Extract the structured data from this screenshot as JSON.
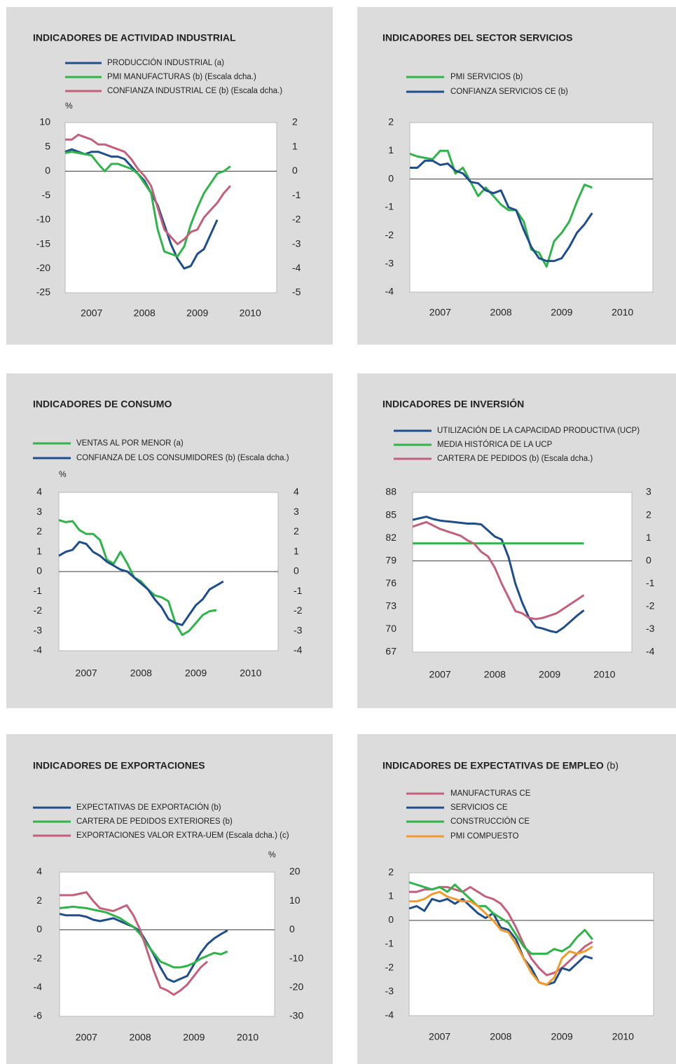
{
  "chart_data": [
    {
      "type": "line",
      "title": "INDICADORES DE ACTIVIDAD INDUSTRIAL",
      "unit": "%",
      "x": [
        2007,
        2007.125,
        2007.25,
        2007.375,
        2007.5,
        2007.625,
        2007.75,
        2007.875,
        2008,
        2008.125,
        2008.25,
        2008.375,
        2008.5,
        2008.625,
        2008.75,
        2008.875,
        2009,
        2009.125,
        2009.25,
        2009.375,
        2009.5,
        2009.625,
        2009.75,
        2009.875,
        2010,
        2010.125
      ],
      "xlim": [
        2007,
        2011
      ],
      "xticks": [
        {
          "value": 2007.5,
          "label": "2007"
        },
        {
          "value": 2008.5,
          "label": "2008"
        },
        {
          "value": 2009.5,
          "label": "2009"
        },
        {
          "value": 2010.5,
          "label": "2010"
        }
      ],
      "ylim": [
        -25,
        10
      ],
      "yticks": [
        -25,
        -20,
        -15,
        -10,
        -5,
        0,
        5,
        10
      ],
      "y2lim": [
        -5,
        2
      ],
      "y2ticks": [
        -5,
        -4,
        -3,
        -2,
        -1,
        0,
        1,
        2
      ],
      "series": [
        {
          "name": "PRODUCCIÓN INDUSTRIAL (a)",
          "color": "#1f4e8c",
          "values": [
            4,
            4.5,
            4,
            3.5,
            4,
            4,
            3.5,
            3,
            3,
            2.5,
            1,
            -0.5,
            -2,
            -4.5,
            -7,
            -11,
            -15,
            -18,
            -20,
            -19.5,
            -17,
            -16,
            -13,
            -10,
            null,
            null
          ]
        },
        {
          "name": "PMI MANUFACTURAS (b) (Escala dcha.)",
          "color": "#2fb44a",
          "axis": "y2",
          "values": [
            0.75,
            0.8,
            0.75,
            0.7,
            0.65,
            0.3,
            0,
            0.3,
            0.3,
            0.2,
            0.1,
            -0.1,
            -0.5,
            -0.9,
            -2.4,
            -3.3,
            -3.4,
            -3.5,
            -3.1,
            -2.2,
            -1.5,
            -0.9,
            -0.5,
            -0.1,
            0,
            0.2
          ]
        },
        {
          "name": "CONFIANZA INDUSTRIAL CE (b) (Escala dcha.)",
          "color": "#c4607c",
          "axis": "y2",
          "values": [
            1.3,
            1.3,
            1.5,
            1.4,
            1.3,
            1.1,
            1.1,
            1,
            0.9,
            0.8,
            0.5,
            0.1,
            -0.2,
            -0.6,
            -1.5,
            -2.4,
            -2.7,
            -3,
            -2.8,
            -2.5,
            -2.4,
            -1.9,
            -1.6,
            -1.3,
            -0.9,
            -0.6
          ]
        }
      ]
    },
    {
      "type": "line",
      "title": "INDICADORES DEL SECTOR SERVICIOS",
      "x": [
        2007,
        2007.125,
        2007.25,
        2007.375,
        2007.5,
        2007.625,
        2007.75,
        2007.875,
        2008,
        2008.125,
        2008.25,
        2008.375,
        2008.5,
        2008.625,
        2008.75,
        2008.875,
        2009,
        2009.125,
        2009.25,
        2009.375,
        2009.5,
        2009.625,
        2009.75,
        2009.875,
        2010,
        2010.125
      ],
      "xlim": [
        2007,
        2011
      ],
      "xticks": [
        {
          "value": 2007.5,
          "label": "2007"
        },
        {
          "value": 2008.5,
          "label": "2008"
        },
        {
          "value": 2009.5,
          "label": "2009"
        },
        {
          "value": 2010.5,
          "label": "2010"
        }
      ],
      "ylim": [
        -4,
        2
      ],
      "yticks": [
        -4,
        -3,
        -2,
        -1,
        0,
        1,
        2
      ],
      "series": [
        {
          "name": "PMI SERVICIOS (b)",
          "color": "#2fb44a",
          "values": [
            0.9,
            0.8,
            0.75,
            0.7,
            1,
            1,
            0.2,
            0.4,
            -0.1,
            -0.6,
            -0.3,
            -0.6,
            -0.9,
            -1.1,
            -1.1,
            -1.5,
            -2.5,
            -2.6,
            -3.1,
            -2.2,
            -1.9,
            -1.5,
            -0.8,
            -0.2,
            -0.3,
            null
          ]
        },
        {
          "name": "CONFIANZA SERVICIOS CE (b)",
          "color": "#1f4e8c",
          "values": [
            0.4,
            0.4,
            0.65,
            0.65,
            0.5,
            0.55,
            0.3,
            0.2,
            -0.1,
            -0.15,
            -0.4,
            -0.5,
            -0.4,
            -1,
            -1.1,
            -1.8,
            -2.4,
            -2.8,
            -2.9,
            -2.9,
            -2.8,
            -2.4,
            -1.9,
            -1.6,
            -1.2,
            null
          ]
        }
      ]
    },
    {
      "type": "line",
      "title": "INDICADORES DE CONSUMO",
      "unit": "%",
      "x": [
        2007,
        2007.125,
        2007.25,
        2007.375,
        2007.5,
        2007.625,
        2007.75,
        2007.875,
        2008,
        2008.125,
        2008.25,
        2008.375,
        2008.5,
        2008.625,
        2008.75,
        2008.875,
        2009,
        2009.125,
        2009.25,
        2009.375,
        2009.5,
        2009.625,
        2009.75,
        2009.875,
        2010,
        2010.125
      ],
      "xlim": [
        2007,
        2011
      ],
      "xticks": [
        {
          "value": 2007.5,
          "label": "2007"
        },
        {
          "value": 2008.5,
          "label": "2008"
        },
        {
          "value": 2009.5,
          "label": "2009"
        },
        {
          "value": 2010.5,
          "label": "2010"
        }
      ],
      "ylim": [
        -4,
        4
      ],
      "yticks": [
        -4,
        -3,
        -2,
        -1,
        0,
        1,
        2,
        3,
        4
      ],
      "y2lim": [
        -4,
        4
      ],
      "y2ticks": [
        -4,
        -3,
        -2,
        -1,
        0,
        1,
        2,
        3,
        4
      ],
      "series": [
        {
          "name": "VENTAS AL POR MENOR (a)",
          "color": "#2fb44a",
          "values": [
            2.6,
            2.5,
            2.55,
            2.1,
            1.9,
            1.9,
            1.6,
            0.6,
            0.4,
            1,
            0.4,
            -0.3,
            -0.5,
            -0.9,
            -1.2,
            -1.3,
            -1.5,
            -2.6,
            -3.2,
            -3,
            -2.6,
            -2.2,
            -2,
            -1.95,
            null,
            null
          ]
        },
        {
          "name": "CONFIANZA DE LOS CONSUMIDORES (b) (Escala dcha.)",
          "color": "#1f4e8c",
          "axis": "y2",
          "values": [
            0.8,
            1,
            1.1,
            1.5,
            1.4,
            1,
            0.8,
            0.5,
            0.3,
            0.1,
            0,
            -0.3,
            -0.6,
            -0.9,
            -1.4,
            -1.8,
            -2.4,
            -2.6,
            -2.7,
            -2.2,
            -1.7,
            -1.4,
            -0.9,
            -0.7,
            -0.5,
            null
          ]
        }
      ]
    },
    {
      "type": "line",
      "title": "INDICADORES DE INVERSIÓN",
      "x": [
        2007,
        2007.125,
        2007.25,
        2007.375,
        2007.5,
        2007.625,
        2007.75,
        2007.875,
        2008,
        2008.125,
        2008.25,
        2008.375,
        2008.5,
        2008.625,
        2008.75,
        2008.875,
        2009,
        2009.125,
        2009.25,
        2009.375,
        2009.5,
        2009.625,
        2009.75,
        2009.875,
        2010,
        2010.125
      ],
      "xlim": [
        2007,
        2011
      ],
      "xticks": [
        {
          "value": 2007.5,
          "label": "2007"
        },
        {
          "value": 2008.5,
          "label": "2008"
        },
        {
          "value": 2009.5,
          "label": "2009"
        },
        {
          "value": 2010.5,
          "label": "2010"
        }
      ],
      "ylim": [
        67,
        88
      ],
      "yticks": [
        67,
        70,
        73,
        76,
        79,
        82,
        85,
        88
      ],
      "y2lim": [
        -4,
        3
      ],
      "y2ticks": [
        -4,
        -3,
        -2,
        -1,
        0,
        1,
        2,
        3
      ],
      "series": [
        {
          "name": "UTILIZACIÓN DE LA CAPACIDAD PRODUCTIVA (UCP)",
          "color": "#1f4e8c",
          "values": [
            84.4,
            84.6,
            84.8,
            84.5,
            84.3,
            84.2,
            84.1,
            84,
            83.9,
            83.9,
            83.8,
            83,
            82.2,
            81.8,
            79.5,
            76,
            73.5,
            71.5,
            70.3,
            70.1,
            69.8,
            69.6,
            70.2,
            71,
            71.8,
            72.5
          ]
        },
        {
          "name": "MEDIA HISTÓRICA DE LA UCP",
          "color": "#2fb44a",
          "values": [
            81.3,
            81.3,
            81.3,
            81.3,
            81.3,
            81.3,
            81.3,
            81.3,
            81.3,
            81.3,
            81.3,
            81.3,
            81.3,
            81.3,
            81.3,
            81.3,
            81.3,
            81.3,
            81.3,
            81.3,
            81.3,
            81.3,
            81.3,
            81.3,
            81.3,
            81.3
          ]
        },
        {
          "name": "CARTERA DE PEDIDOS (b) (Escala dcha.)",
          "color": "#c4607c",
          "axis": "y2",
          "values": [
            1.5,
            1.6,
            1.7,
            1.55,
            1.4,
            1.3,
            1.2,
            1.1,
            0.9,
            0.75,
            0.4,
            0.2,
            -0.3,
            -1,
            -1.6,
            -2.2,
            -2.3,
            -2.5,
            -2.55,
            -2.5,
            -2.4,
            -2.3,
            -2.1,
            -1.9,
            -1.7,
            -1.5
          ]
        }
      ]
    },
    {
      "type": "line",
      "title": "INDICADORES DE EXPORTACIONES",
      "unit": "%",
      "x": [
        2007,
        2007.125,
        2007.25,
        2007.375,
        2007.5,
        2007.625,
        2007.75,
        2007.875,
        2008,
        2008.125,
        2008.25,
        2008.375,
        2008.5,
        2008.625,
        2008.75,
        2008.875,
        2009,
        2009.125,
        2009.25,
        2009.375,
        2009.5,
        2009.625,
        2009.75,
        2009.875,
        2010,
        2010.125
      ],
      "xlim": [
        2007,
        2011
      ],
      "xticks": [
        {
          "value": 2007.5,
          "label": "2007"
        },
        {
          "value": 2008.5,
          "label": "2008"
        },
        {
          "value": 2009.5,
          "label": "2009"
        },
        {
          "value": 2010.5,
          "label": "2010"
        }
      ],
      "ylim": [
        -6,
        4
      ],
      "yticks": [
        -6,
        -4,
        -2,
        0,
        2,
        4
      ],
      "y2lim": [
        -30,
        20
      ],
      "y2ticks": [
        -30,
        -20,
        -10,
        0,
        10,
        20
      ],
      "series": [
        {
          "name": "EXPECTATIVAS DE EXPORTACIÓN (b)",
          "color": "#1f4e8c",
          "values": [
            1.1,
            1,
            1,
            1,
            0.9,
            0.7,
            0.6,
            0.7,
            0.8,
            0.6,
            0.4,
            0.2,
            -0.1,
            -0.9,
            -1.7,
            -2.6,
            -3.4,
            -3.6,
            -3.4,
            -3.2,
            -2.4,
            -1.6,
            -1,
            -0.6,
            -0.3,
            -0.05
          ]
        },
        {
          "name": "CARTERA DE PEDIDOS EXTERIORES (b)",
          "color": "#2fb44a",
          "values": [
            1.5,
            1.55,
            1.6,
            1.55,
            1.5,
            1.4,
            1.3,
            1.2,
            1,
            0.8,
            0.5,
            0.2,
            -0.3,
            -1,
            -1.6,
            -2.2,
            -2.4,
            -2.6,
            -2.6,
            -2.5,
            -2.3,
            -2,
            -1.8,
            -1.6,
            -1.7,
            -1.5
          ]
        },
        {
          "name": "EXPORTACIONES VALOR EXTRA-UEM (Escala dcha.) (c)",
          "color": "#c4607c",
          "axis": "y2",
          "values": [
            12,
            12,
            12,
            12.5,
            13,
            10,
            7.5,
            7,
            6.5,
            7.5,
            8.5,
            5,
            0,
            -7,
            -14,
            -20,
            -21,
            -22.5,
            -21,
            -19,
            -16,
            -13,
            -11,
            null,
            null,
            null
          ]
        }
      ]
    },
    {
      "type": "line",
      "title": "INDICADORES DE EXPECTATIVAS DE EMPLEO",
      "title_note": "(b)",
      "x": [
        2007,
        2007.125,
        2007.25,
        2007.375,
        2007.5,
        2007.625,
        2007.75,
        2007.875,
        2008,
        2008.125,
        2008.25,
        2008.375,
        2008.5,
        2008.625,
        2008.75,
        2008.875,
        2009,
        2009.125,
        2009.25,
        2009.375,
        2009.5,
        2009.625,
        2009.75,
        2009.875,
        2010,
        2010.125
      ],
      "xlim": [
        2007,
        2011
      ],
      "xticks": [
        {
          "value": 2007.5,
          "label": "2007"
        },
        {
          "value": 2008.5,
          "label": "2008"
        },
        {
          "value": 2009.5,
          "label": "2009"
        },
        {
          "value": 2010.5,
          "label": "2010"
        }
      ],
      "ylim": [
        -4,
        2
      ],
      "yticks": [
        -4,
        -3,
        -2,
        -1,
        0,
        1,
        2
      ],
      "series": [
        {
          "name": "MANUFACTURAS CE",
          "color": "#c4607c",
          "values": [
            1.2,
            1.2,
            1.3,
            1.3,
            1.4,
            1.4,
            1.3,
            1.2,
            1.4,
            1.2,
            1,
            0.9,
            0.7,
            0.3,
            -0.3,
            -1,
            -1.6,
            -2,
            -2.3,
            -2.2,
            -2,
            -1.7,
            -1.4,
            -1.1,
            -0.9,
            null
          ]
        },
        {
          "name": "SERVICIOS CE",
          "color": "#1f4e8c",
          "values": [
            0.5,
            0.6,
            0.4,
            0.9,
            0.8,
            0.9,
            0.7,
            0.9,
            0.6,
            0.3,
            0.1,
            0.3,
            -0.3,
            -0.4,
            -0.8,
            -1.6,
            -2,
            -2.6,
            -2.7,
            -2.6,
            -2,
            -2.1,
            -1.8,
            -1.5,
            -1.6,
            null
          ]
        },
        {
          "name": "CONSTRUCCIÓN CE",
          "color": "#2fb44a",
          "values": [
            1.6,
            1.5,
            1.4,
            1.3,
            1.4,
            1.2,
            1.5,
            1.2,
            0.9,
            0.6,
            0.6,
            0.3,
            0.1,
            -0.1,
            -0.6,
            -1.1,
            -1.4,
            -1.4,
            -1.4,
            -1.2,
            -1.3,
            -1.1,
            -0.7,
            -0.4,
            -0.8,
            null
          ]
        },
        {
          "name": "PMI COMPUESTO",
          "color": "#f39a2b",
          "values": [
            0.8,
            0.8,
            0.9,
            1.1,
            1.2,
            1,
            0.9,
            0.8,
            0.8,
            0.6,
            0.3,
            0,
            -0.4,
            -0.5,
            -1,
            -1.6,
            -2.2,
            -2.6,
            -2.7,
            -2.4,
            -1.6,
            -1.3,
            -1.4,
            -1.3,
            -1.1,
            null
          ]
        }
      ]
    }
  ]
}
